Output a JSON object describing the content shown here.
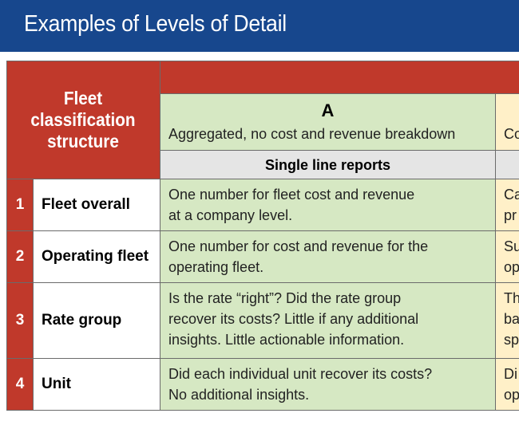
{
  "title": "Examples of Levels of Detail",
  "structure_header": [
    "Fleet",
    "classification",
    "structure"
  ],
  "column_a": {
    "letter": "A",
    "subtitle": "Aggregated, no cost and revenue breakdown",
    "report_type": "Single line reports"
  },
  "column_b": {
    "subtitle_fragment": "Co"
  },
  "rows": [
    {
      "num": "1",
      "name": "Fleet overall",
      "a": [
        "One number for fleet cost and revenue",
        "at a company level."
      ],
      "b": [
        "Ca",
        "pr"
      ]
    },
    {
      "num": "2",
      "name": "Operating fleet",
      "a": [
        "One number for cost and revenue for the",
        "operating fleet."
      ],
      "b": [
        "Su",
        "op"
      ]
    },
    {
      "num": "3",
      "name": "Rate group",
      "a": [
        "Is the rate “right”? Did the rate group",
        "recover its costs? Little if any additional",
        "insights. Little actionable information."
      ],
      "b": [
        "Th",
        "ba",
        "sp"
      ]
    },
    {
      "num": "4",
      "name": "Unit",
      "a": [
        "Did each individual unit recover its costs?",
        "No additional insights."
      ],
      "b": [
        "Di",
        "op"
      ]
    }
  ],
  "colors": {
    "title_bar": "#17478d",
    "header_red": "#c0392b",
    "col_a_green": "#d6e8c3",
    "col_b_cream": "#fff0c8"
  }
}
